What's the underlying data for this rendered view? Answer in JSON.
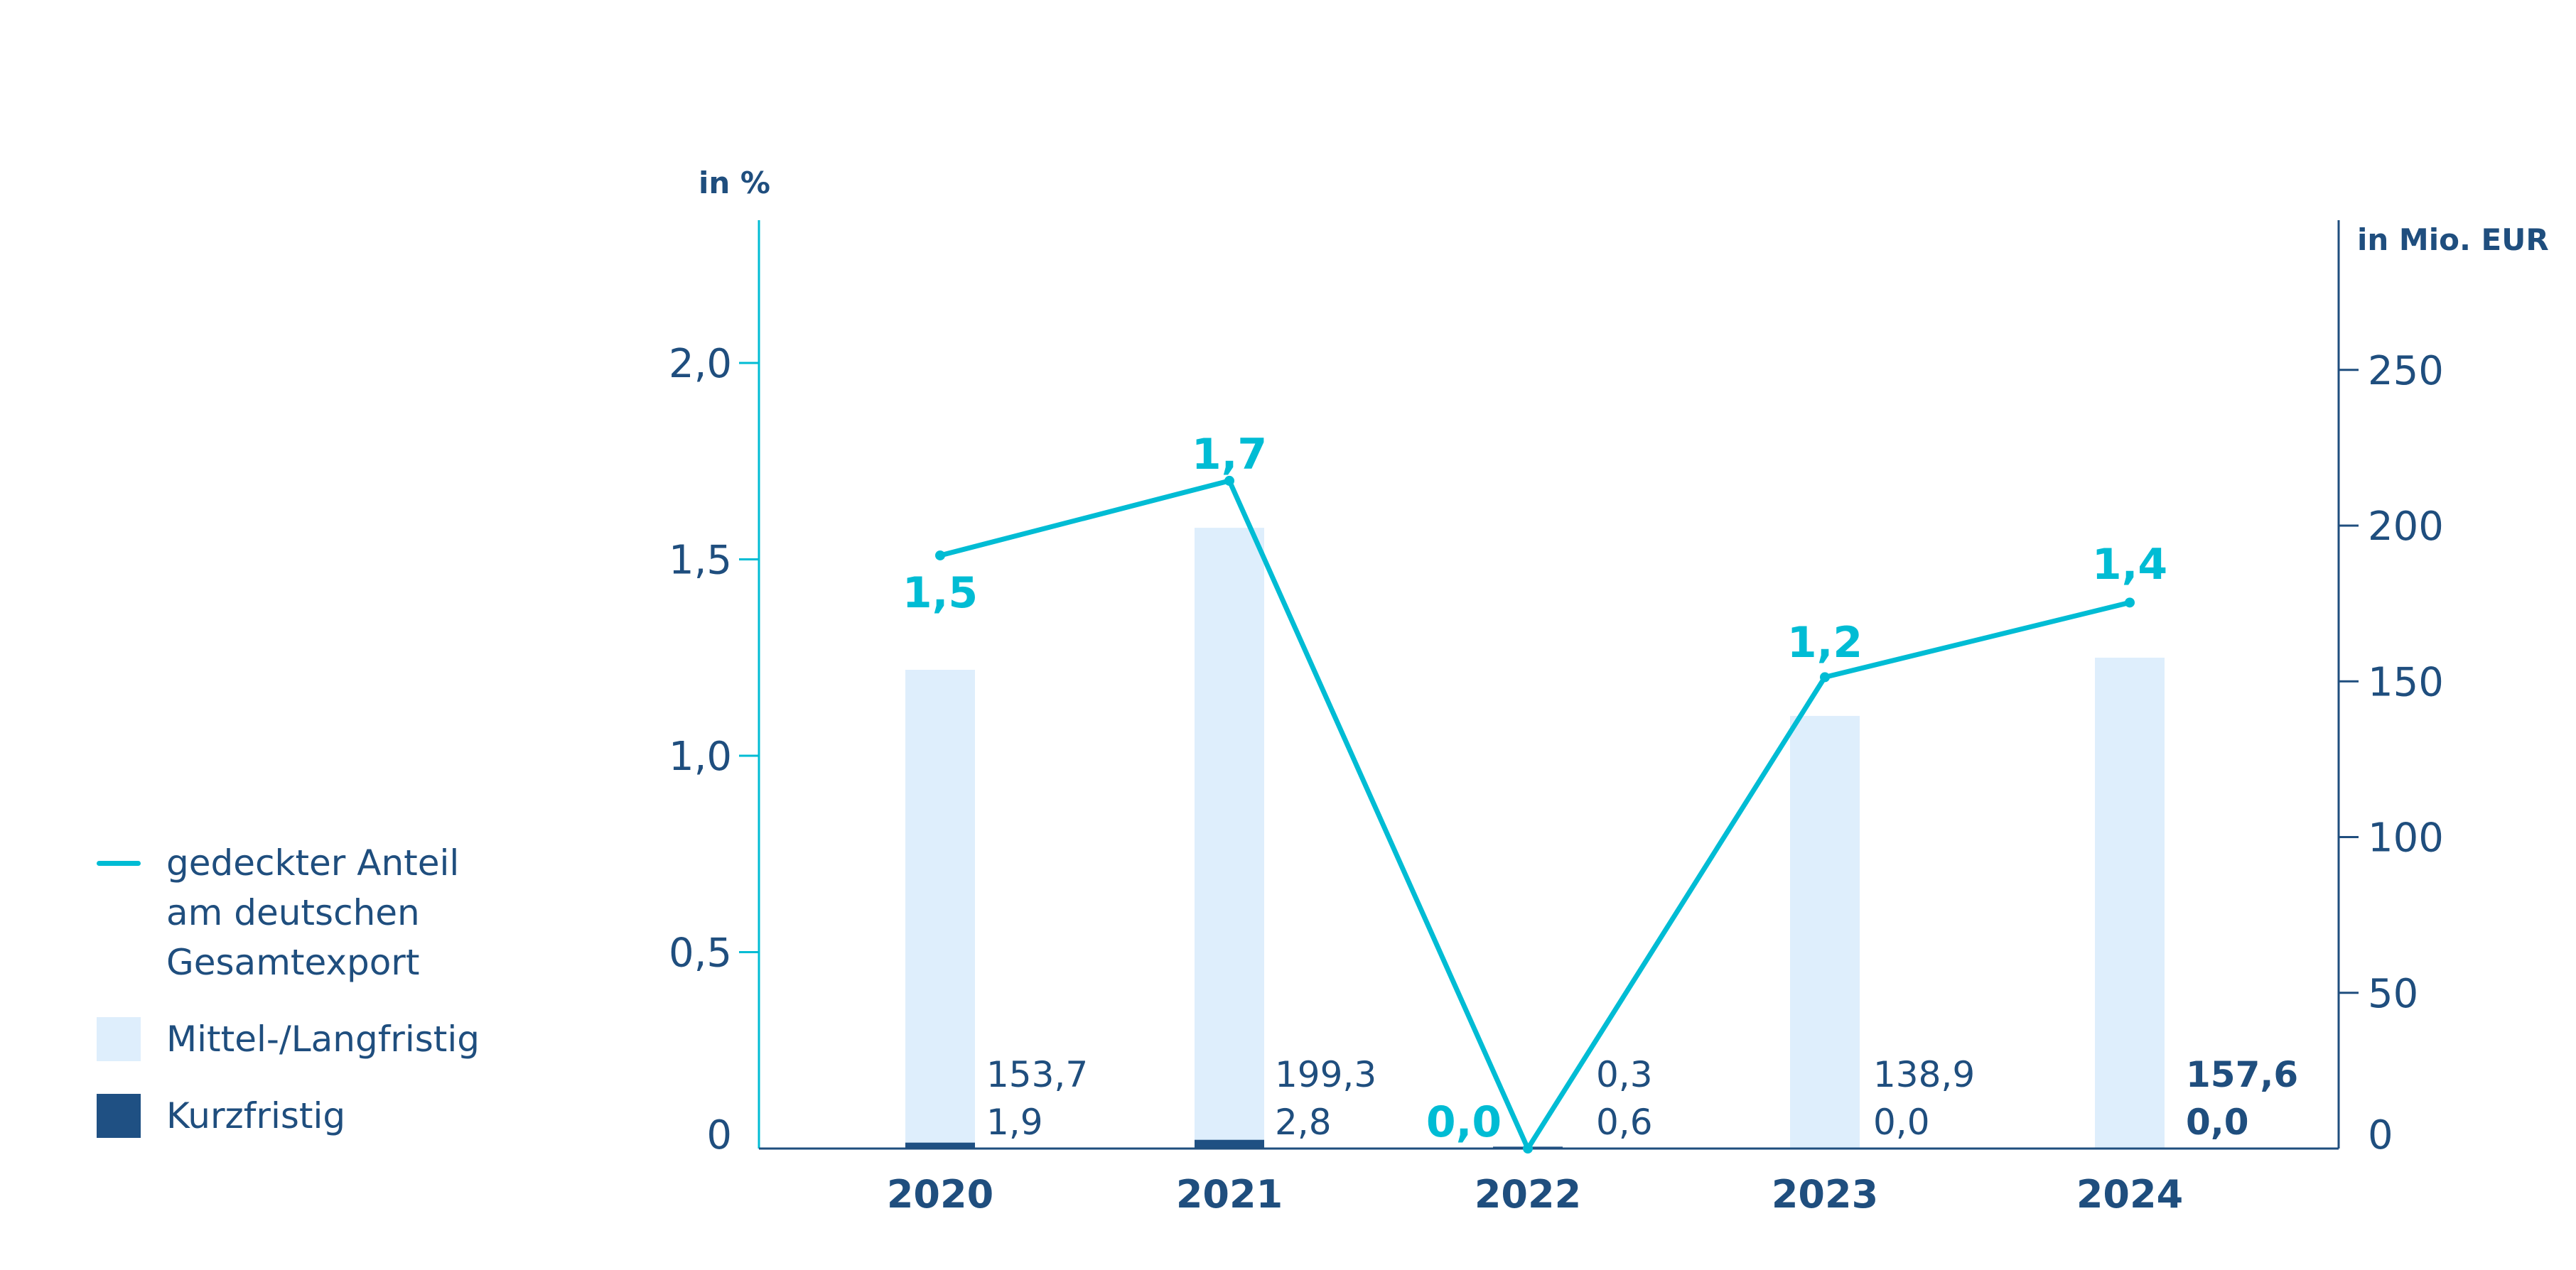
{
  "chart_data": {
    "type": "bar+line",
    "categories": [
      "2020",
      "2021",
      "2022",
      "2023",
      "2024"
    ],
    "left_axis": {
      "label": "in %",
      "ticks": [
        "0",
        "0,5",
        "1,0",
        "1,5",
        "2,0"
      ],
      "range": [
        0,
        2.3
      ]
    },
    "right_axis": {
      "label": "in Mio. EUR",
      "ticks": [
        "0",
        "50",
        "100",
        "150",
        "200",
        "250"
      ],
      "range": [
        0,
        292
      ]
    },
    "series": [
      {
        "name": "gedeckter Anteil\nam deutschen\nGesamtexport",
        "type": "line",
        "axis": "left",
        "color": "#00bcd4",
        "values": [
          1.51,
          1.7,
          0.0,
          1.2,
          1.39
        ],
        "labels": [
          "1,5",
          "1,7",
          "0,0",
          "1,2",
          "1,4"
        ]
      },
      {
        "name": "Mittel-/Langfristig",
        "type": "bar",
        "axis": "right",
        "color": "#deeefc",
        "values": [
          153.7,
          199.3,
          0.3,
          138.9,
          157.6
        ],
        "labels": [
          "153,7",
          "199,3",
          "0,3",
          "138,9",
          "157,6"
        ]
      },
      {
        "name": "Kurzfristig",
        "type": "bar",
        "axis": "right",
        "color": "#1f5083",
        "values": [
          1.9,
          2.8,
          0.6,
          0.0,
          0.0
        ],
        "labels": [
          "1,9",
          "2,8",
          "0,6",
          "0,0",
          "0,0"
        ]
      }
    ],
    "bold_value_labels_category": "2024",
    "axis_color_left": "#00bcd4",
    "axis_color_right": "#1f4e7e",
    "text_color": "#1f4e7e",
    "legend_position": "left"
  }
}
